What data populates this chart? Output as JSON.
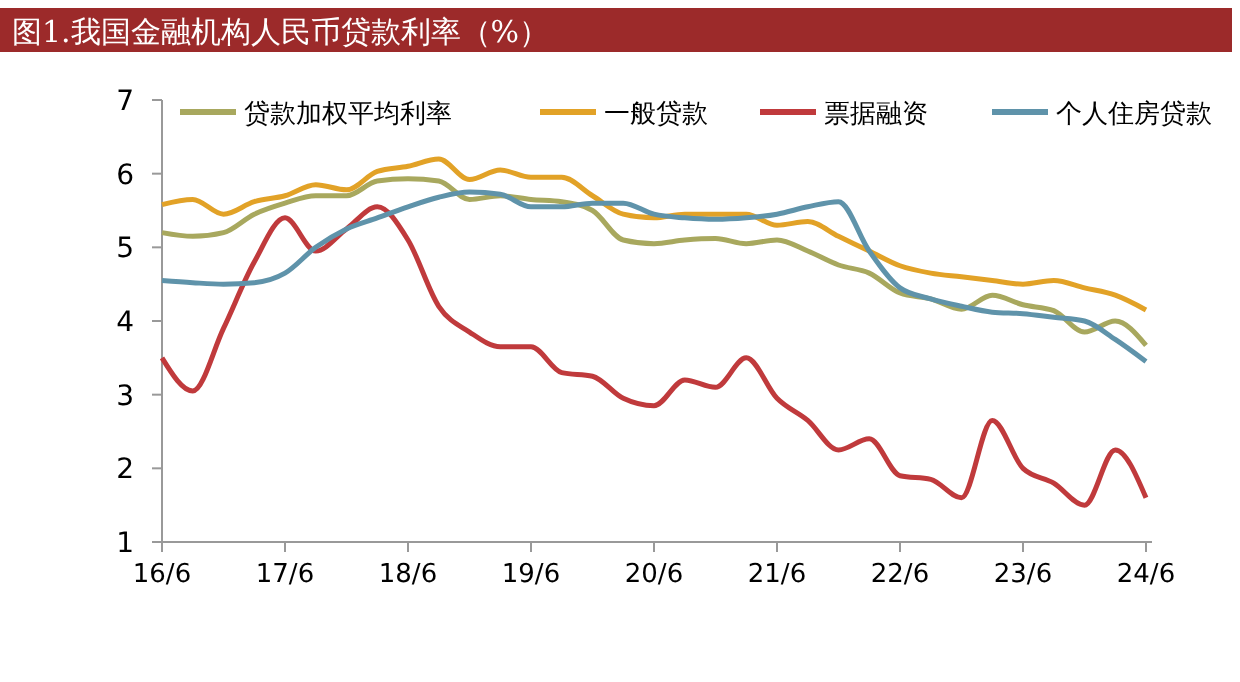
{
  "chart_data": {
    "type": "line",
    "title": "图1.我国金融机构人民币贷款利率（%）",
    "categories": [
      "16/6",
      null,
      null,
      null,
      "17/6",
      null,
      null,
      null,
      "18/6",
      null,
      null,
      null,
      "19/6",
      null,
      null,
      null,
      "20/6",
      null,
      null,
      null,
      "21/6",
      null,
      null,
      null,
      "22/6",
      null,
      null,
      null,
      "23/6",
      null,
      null,
      null,
      "24/6"
    ],
    "ylim": [
      1,
      7
    ],
    "yticks": [
      1,
      2,
      3,
      4,
      5,
      6,
      7
    ],
    "grid": false,
    "legend": "top",
    "marker": "none",
    "line_style": "solid",
    "series": [
      {
        "name": "贷款加权平均利率",
        "color": "#a8a85e",
        "values": [
          5.2,
          5.15,
          5.2,
          5.45,
          5.6,
          5.7,
          5.7,
          5.9,
          5.93,
          5.9,
          5.65,
          5.7,
          5.65,
          5.62,
          5.5,
          5.1,
          5.05,
          5.1,
          5.12,
          5.05,
          5.1,
          4.95,
          4.76,
          4.65,
          4.38,
          4.3,
          4.16,
          4.35,
          4.22,
          4.14,
          3.85,
          4.0,
          3.67
        ]
      },
      {
        "name": "一般贷款",
        "color": "#e2a227",
        "values": [
          5.58,
          5.65,
          5.45,
          5.62,
          5.7,
          5.85,
          5.78,
          6.03,
          6.1,
          6.2,
          5.92,
          6.05,
          5.95,
          5.95,
          5.7,
          5.45,
          5.4,
          5.45,
          5.45,
          5.45,
          5.3,
          5.35,
          5.15,
          4.95,
          4.75,
          4.65,
          4.6,
          4.55,
          4.5,
          4.55,
          4.45,
          4.35,
          4.15
        ]
      },
      {
        "name": "票据融资",
        "color": "#c03a3c",
        "values": [
          3.5,
          3.05,
          3.9,
          4.8,
          5.4,
          4.95,
          5.25,
          5.55,
          5.1,
          4.2,
          3.85,
          3.65,
          3.65,
          3.3,
          3.25,
          2.95,
          2.85,
          3.2,
          3.1,
          3.5,
          2.95,
          2.65,
          2.25,
          2.4,
          1.9,
          1.85,
          1.6,
          2.65,
          2.0,
          1.8,
          1.5,
          2.25,
          1.6
        ]
      },
      {
        "name": "个人住房贷款",
        "color": "#5f93aa",
        "values": [
          4.55,
          4.52,
          4.5,
          4.52,
          4.65,
          5.0,
          5.25,
          5.4,
          5.55,
          5.68,
          5.75,
          5.72,
          5.55,
          5.55,
          5.6,
          5.6,
          5.45,
          5.4,
          5.38,
          5.4,
          5.45,
          5.55,
          5.62,
          4.95,
          4.45,
          4.3,
          4.2,
          4.12,
          4.1,
          4.05,
          4.0,
          3.75,
          3.45
        ]
      }
    ]
  }
}
